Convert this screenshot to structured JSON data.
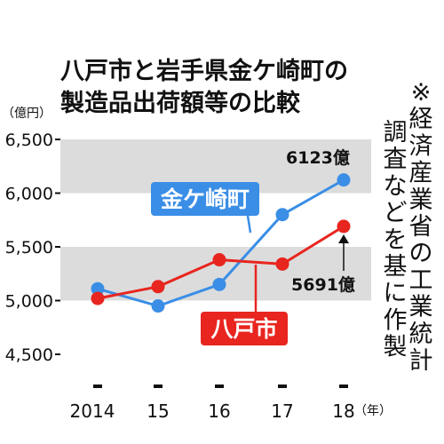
{
  "title_lines": [
    "八戸市と岩手県金ケ崎町の",
    "製造品出荷額等の比較"
  ],
  "unit_label": "（億円）",
  "note": "※経済産業省の工業統計調査などを基に作製",
  "chart_data": {
    "type": "line",
    "title": "八戸市と岩手県金ケ崎町の製造品出荷額等の比較",
    "ylabel": "（億円）",
    "xlabel": "",
    "x_unit": "（年）",
    "categories": [
      "2014",
      "15",
      "16",
      "17",
      "18"
    ],
    "ylim": [
      4500,
      6500
    ],
    "yticks": [
      {
        "value": 6500,
        "label": "6,500"
      },
      {
        "value": 6000,
        "label": "6,000"
      },
      {
        "value": 5500,
        "label": "5,500"
      },
      {
        "value": 5000,
        "label": "5,000"
      },
      {
        "value": 4500,
        "label": "4,500"
      }
    ],
    "grid_bands": true,
    "series": [
      {
        "name": "金ケ崎町",
        "color": "#3a8ee6",
        "values": [
          5110,
          4950,
          5150,
          5800,
          6123
        ]
      },
      {
        "name": "八戸市",
        "color": "#e8251f",
        "values": [
          5020,
          5130,
          5380,
          5340,
          5691
        ]
      }
    ],
    "annotations": [
      {
        "series": 0,
        "label": "6123億"
      },
      {
        "series": 1,
        "label": "5691億"
      }
    ]
  }
}
